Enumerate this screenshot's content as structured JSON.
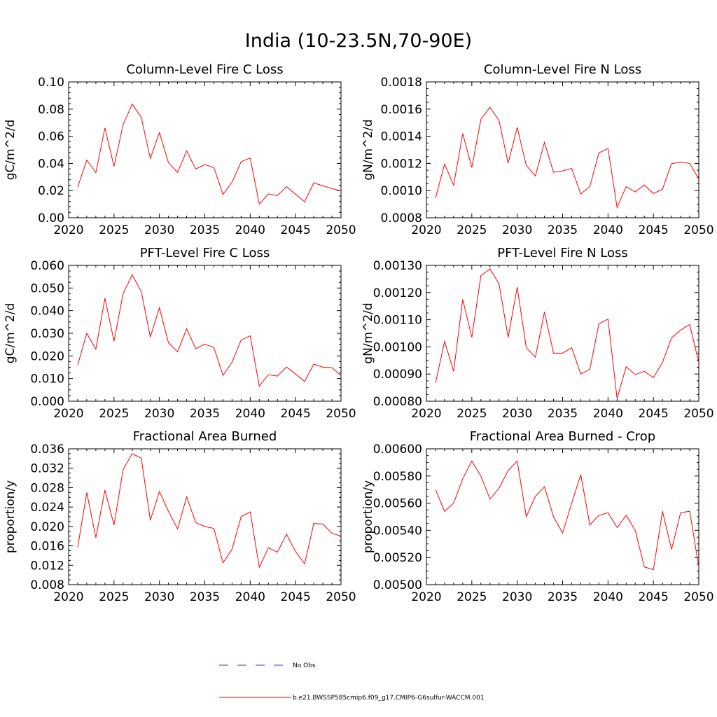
{
  "title": "India (10-23.5N,70-90E)",
  "colors": {
    "model": "#ff0000",
    "obs": "#3a3acd"
  },
  "legend": {
    "obs_label": "No Obs",
    "model_label": "b.e21.BWSSP585cmip6.f09_g17.CMIP6-G6sulfur-WACCM.001"
  },
  "chart_data": [
    {
      "type": "line",
      "title": "Column-Level Fire C Loss",
      "ylabel": "gC/m^2/d",
      "xlim": [
        2020,
        2050
      ],
      "ylim": [
        0.0,
        0.1
      ],
      "xticks": [
        2020,
        2025,
        2030,
        2035,
        2040,
        2045,
        2050
      ],
      "xtick_labels": [
        "2020",
        "2025",
        "2030",
        "2035",
        "2040",
        "2045",
        "2050"
      ],
      "yticks": [
        0.0,
        0.02,
        0.04,
        0.06,
        0.08,
        0.1
      ],
      "ytick_labels": [
        "0.00",
        "0.02",
        "0.04",
        "0.06",
        "0.08",
        "0.10"
      ],
      "minor_per_major": 5,
      "x": [
        2021,
        2022,
        2023,
        2024,
        2025,
        2026,
        2027,
        2028,
        2029,
        2030,
        2031,
        2032,
        2033,
        2034,
        2035,
        2036,
        2037,
        2038,
        2039,
        2040,
        2041,
        2042,
        2043,
        2044,
        2045,
        2046,
        2047,
        2048,
        2049,
        2050
      ],
      "series": [
        {
          "values": [
            0.0225,
            0.0425,
            0.0332,
            0.0662,
            0.0378,
            0.0685,
            0.0836,
            0.074,
            0.0436,
            0.0627,
            0.0405,
            0.0334,
            0.0492,
            0.0359,
            0.0391,
            0.037,
            0.0172,
            0.0262,
            0.0412,
            0.044,
            0.0101,
            0.0175,
            0.0163,
            0.023,
            0.0173,
            0.0118,
            0.0257,
            0.0235,
            0.0215,
            0.0198
          ]
        }
      ]
    },
    {
      "type": "line",
      "title": "Column-Level Fire N Loss",
      "ylabel": "gN/m^2/d",
      "xlim": [
        2020,
        2050
      ],
      "ylim": [
        0.0008,
        0.0018
      ],
      "xticks": [
        2020,
        2025,
        2030,
        2035,
        2040,
        2045,
        2050
      ],
      "xtick_labels": [
        "2020",
        "2025",
        "2030",
        "2035",
        "2040",
        "2045",
        "2050"
      ],
      "yticks": [
        0.0008,
        0.001,
        0.0012,
        0.0014,
        0.0016,
        0.0018
      ],
      "ytick_labels": [
        "0.0008",
        "0.0010",
        "0.0012",
        "0.0014",
        "0.0016",
        "0.0018"
      ],
      "minor_per_major": 4,
      "x": [
        2021,
        2022,
        2023,
        2024,
        2025,
        2026,
        2027,
        2028,
        2029,
        2030,
        2031,
        2032,
        2033,
        2034,
        2035,
        2036,
        2037,
        2038,
        2039,
        2040,
        2041,
        2042,
        2043,
        2044,
        2045,
        2046,
        2047,
        2048,
        2049,
        2050
      ],
      "series": [
        {
          "values": [
            0.000945,
            0.001195,
            0.00104,
            0.00142,
            0.00117,
            0.001525,
            0.001613,
            0.001515,
            0.001202,
            0.001465,
            0.001185,
            0.001108,
            0.001355,
            0.001135,
            0.001145,
            0.001163,
            0.000975,
            0.00103,
            0.001278,
            0.00131,
            0.000875,
            0.00103,
            0.00099,
            0.001042,
            0.000978,
            0.00101,
            0.001198,
            0.00121,
            0.0012,
            0.001085
          ]
        }
      ]
    },
    {
      "type": "line",
      "title": "PFT-Level Fire C Loss",
      "ylabel": "gC/m^2/d",
      "xlim": [
        2020,
        2050
      ],
      "ylim": [
        0.0,
        0.06
      ],
      "xticks": [
        2020,
        2025,
        2030,
        2035,
        2040,
        2045,
        2050
      ],
      "xtick_labels": [
        "2020",
        "2025",
        "2030",
        "2035",
        "2040",
        "2045",
        "2050"
      ],
      "yticks": [
        0.0,
        0.01,
        0.02,
        0.03,
        0.04,
        0.05,
        0.06
      ],
      "ytick_labels": [
        "0.000",
        "0.010",
        "0.020",
        "0.030",
        "0.040",
        "0.050",
        "0.060"
      ],
      "minor_per_major": 4,
      "x": [
        2021,
        2022,
        2023,
        2024,
        2025,
        2026,
        2027,
        2028,
        2029,
        2030,
        2031,
        2032,
        2033,
        2034,
        2035,
        2036,
        2037,
        2038,
        2039,
        2040,
        2041,
        2042,
        2043,
        2044,
        2045,
        2046,
        2047,
        2048,
        2049,
        2050
      ],
      "series": [
        {
          "values": [
            0.016,
            0.03,
            0.023,
            0.0455,
            0.0265,
            0.0475,
            0.0558,
            0.0485,
            0.0283,
            0.0413,
            0.0258,
            0.0218,
            0.032,
            0.0232,
            0.0252,
            0.0237,
            0.0114,
            0.0172,
            0.027,
            0.0289,
            0.0067,
            0.0117,
            0.0111,
            0.0151,
            0.012,
            0.0087,
            0.0164,
            0.015,
            0.0148,
            0.0113
          ]
        }
      ]
    },
    {
      "type": "line",
      "title": "PFT-Level Fire N Loss",
      "ylabel": "gN/m^2/d",
      "xlim": [
        2020,
        2050
      ],
      "ylim": [
        0.0008,
        0.0013
      ],
      "xticks": [
        2020,
        2025,
        2030,
        2035,
        2040,
        2045,
        2050
      ],
      "xtick_labels": [
        "2020",
        "2025",
        "2030",
        "2035",
        "2040",
        "2045",
        "2050"
      ],
      "yticks": [
        0.0008,
        0.0009,
        0.001,
        0.0011,
        0.0012,
        0.0013
      ],
      "ytick_labels": [
        "0.00080",
        "0.00090",
        "0.00100",
        "0.00110",
        "0.00120",
        "0.00130"
      ],
      "minor_per_major": 4,
      "x": [
        2021,
        2022,
        2023,
        2024,
        2025,
        2026,
        2027,
        2028,
        2029,
        2030,
        2031,
        2032,
        2033,
        2034,
        2035,
        2036,
        2037,
        2038,
        2039,
        2040,
        2041,
        2042,
        2043,
        2044,
        2045,
        2046,
        2047,
        2048,
        2049,
        2050
      ],
      "series": [
        {
          "values": [
            0.000867,
            0.00102,
            0.00091,
            0.001175,
            0.001035,
            0.001262,
            0.001287,
            0.001232,
            0.001035,
            0.00122,
            0.000997,
            0.000962,
            0.001128,
            0.000977,
            0.000977,
            0.000997,
            0.0009,
            0.000918,
            0.001085,
            0.001102,
            0.00081,
            0.000927,
            0.000898,
            0.00091,
            0.000887,
            0.000943,
            0.001033,
            0.001062,
            0.001082,
            0.000942
          ]
        }
      ]
    },
    {
      "type": "line",
      "title": "Fractional Area Burned",
      "ylabel": "proportion/y",
      "xlim": [
        2020,
        2050
      ],
      "ylim": [
        0.008,
        0.036
      ],
      "xticks": [
        2020,
        2025,
        2030,
        2035,
        2040,
        2045,
        2050
      ],
      "xtick_labels": [
        "2020",
        "2025",
        "2030",
        "2035",
        "2040",
        "2045",
        "2050"
      ],
      "yticks": [
        0.008,
        0.012,
        0.016,
        0.02,
        0.024,
        0.028,
        0.032,
        0.036
      ],
      "ytick_labels": [
        "0.008",
        "0.012",
        "0.016",
        "0.020",
        "0.024",
        "0.028",
        "0.032",
        "0.036"
      ],
      "minor_per_major": 4,
      "x": [
        2021,
        2022,
        2023,
        2024,
        2025,
        2026,
        2027,
        2028,
        2029,
        2030,
        2031,
        2032,
        2033,
        2034,
        2035,
        2036,
        2037,
        2038,
        2039,
        2040,
        2041,
        2042,
        2043,
        2044,
        2045,
        2046,
        2047,
        2048,
        2049,
        2050
      ],
      "series": [
        {
          "values": [
            0.0157,
            0.027,
            0.0177,
            0.0275,
            0.0203,
            0.0317,
            0.035,
            0.0341,
            0.0213,
            0.0272,
            0.0231,
            0.0195,
            0.0261,
            0.0208,
            0.02,
            0.0196,
            0.0125,
            0.0153,
            0.022,
            0.023,
            0.0116,
            0.0156,
            0.0147,
            0.0184,
            0.0148,
            0.0123,
            0.0206,
            0.0205,
            0.0186,
            0.018
          ]
        }
      ]
    },
    {
      "type": "line",
      "title": "Fractional Area Burned - Crop",
      "ylabel": "proportion/y",
      "xlim": [
        2020,
        2050
      ],
      "ylim": [
        0.005,
        0.006
      ],
      "xticks": [
        2020,
        2025,
        2030,
        2035,
        2040,
        2045,
        2050
      ],
      "xtick_labels": [
        "2020",
        "2025",
        "2030",
        "2035",
        "2040",
        "2045",
        "2050"
      ],
      "yticks": [
        0.005,
        0.0052,
        0.0054,
        0.0056,
        0.0058,
        0.006
      ],
      "ytick_labels": [
        "0.00500",
        "0.00520",
        "0.00540",
        "0.00560",
        "0.00580",
        "0.00600"
      ],
      "minor_per_major": 4,
      "x": [
        2021,
        2022,
        2023,
        2024,
        2025,
        2026,
        2027,
        2028,
        2029,
        2030,
        2031,
        2032,
        2033,
        2034,
        2035,
        2036,
        2037,
        2038,
        2039,
        2040,
        2041,
        2042,
        2043,
        2044,
        2045,
        2046,
        2047,
        2048,
        2049,
        2050
      ],
      "series": [
        {
          "values": [
            0.0057,
            0.00554,
            0.0056,
            0.00578,
            0.00591,
            0.0058,
            0.00563,
            0.00571,
            0.00584,
            0.00591,
            0.0055,
            0.00565,
            0.00572,
            0.0055,
            0.00538,
            0.0056,
            0.00581,
            0.00544,
            0.00551,
            0.00553,
            0.00542,
            0.00551,
            0.0054,
            0.00513,
            0.00511,
            0.00554,
            0.00526,
            0.00553,
            0.00554,
            0.00513
          ]
        }
      ]
    }
  ]
}
